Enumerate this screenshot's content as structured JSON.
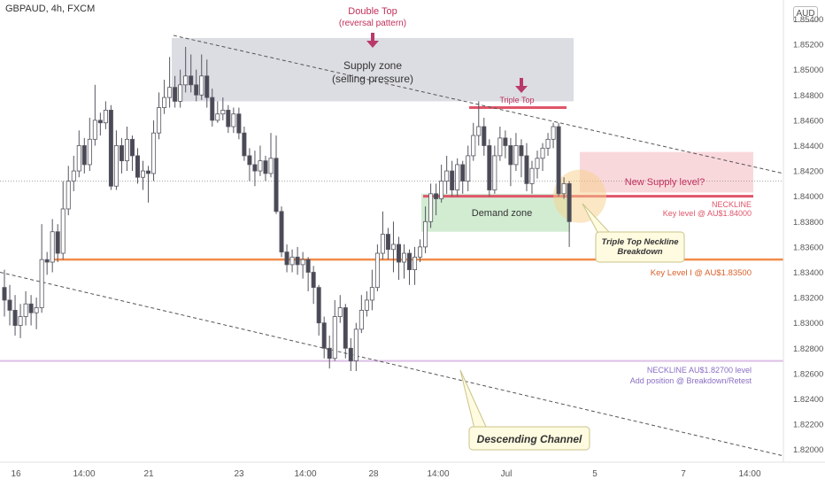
{
  "header": {
    "title": "GBPAUD, 4h, FXCM",
    "currency_button": "AUD"
  },
  "colors": {
    "bull": "#ffffff",
    "bear": "#4a4a57",
    "wick": "#555560",
    "supply_zone": "#d6d7dd",
    "demand_zone": "#cdeacd",
    "new_supply": "#f8d1d6",
    "neckline_red": "#e0556a",
    "key_level": "#f28c4a",
    "lower_neckline": "#dcbfe6",
    "magenta_text": "#c0305a",
    "purple_text": "#8a6fc4",
    "orange_text": "#d9602a",
    "arrow": "#b83a6b",
    "highlight_circle": "#f7cf8a",
    "callout_fill": "#fffbe0",
    "callout_border": "#c9c38a"
  },
  "annotations": {
    "double_top": "Double Top",
    "double_top_sub": "(reversal pattern)",
    "supply_zone": "Supply zone",
    "supply_zone_sub": "(selling pressure)",
    "triple_top": "Triple Top",
    "demand_zone": "Demand zone",
    "new_supply": "New Supply level?",
    "neckline_upper": "NECKLINE",
    "neckline_upper_sub": "Key level @ AU$1.84000",
    "key_level": "Key Level I @ AU$1.83500",
    "neckline_lower": "NECKLINE AU$1.82700 level",
    "neckline_lower_sub": "Add position @ Breakdown/Retest",
    "breakdown_callout": "Triple Top Neckline",
    "breakdown_callout_sub": "Breakdown",
    "channel_callout": "Descending Channel"
  },
  "chart_data": {
    "type": "candlestick",
    "symbol": "GBPAUD",
    "timeframe": "4h",
    "ylim": [
      1.819,
      1.8555
    ],
    "y_ticks": [
      "1.85400",
      "1.85200",
      "1.85000",
      "1.84800",
      "1.84600",
      "1.84400",
      "1.84200",
      "1.84000",
      "1.83800",
      "1.83600",
      "1.83400",
      "1.83200",
      "1.83000",
      "1.82800",
      "1.82600",
      "1.82400",
      "1.82200",
      "1.82000"
    ],
    "x_ticks": [
      "16",
      "14:00",
      "21",
      "23",
      "14:00",
      "28",
      "14:00",
      "Jul",
      "5",
      "7",
      "14:00"
    ],
    "levels": {
      "neckline_upper": 1.84,
      "key_level": 1.835,
      "neckline_lower": 1.827
    },
    "zones": {
      "supply": [
        1.8475,
        1.8525
      ],
      "demand": [
        1.8372,
        1.8402
      ],
      "new_supply": [
        1.8403,
        1.8432
      ]
    },
    "candles": [
      [
        1.8328,
        1.8318,
        1.8342,
        1.8305
      ],
      [
        1.8318,
        1.831,
        1.833,
        1.8298
      ],
      [
        1.831,
        1.8298,
        1.8322,
        1.829
      ],
      [
        1.8298,
        1.8305,
        1.8315,
        1.8288
      ],
      [
        1.8305,
        1.8315,
        1.8325,
        1.8298
      ],
      [
        1.8315,
        1.8308,
        1.8322,
        1.8298
      ],
      [
        1.8308,
        1.8312,
        1.832,
        1.8295
      ],
      [
        1.8312,
        1.835,
        1.8378,
        1.8308
      ],
      [
        1.835,
        1.8348,
        1.8356,
        1.8338
      ],
      [
        1.8348,
        1.8372,
        1.8382,
        1.834
      ],
      [
        1.8372,
        1.8355,
        1.8378,
        1.8348
      ],
      [
        1.8355,
        1.839,
        1.8412,
        1.835
      ],
      [
        1.839,
        1.8412,
        1.8424,
        1.8385
      ],
      [
        1.8412,
        1.842,
        1.8432,
        1.8404
      ],
      [
        1.842,
        1.844,
        1.8452,
        1.8415
      ],
      [
        1.844,
        1.8425,
        1.8446,
        1.8418
      ],
      [
        1.8425,
        1.8445,
        1.8462,
        1.842
      ],
      [
        1.8445,
        1.846,
        1.8488,
        1.844
      ],
      [
        1.846,
        1.8458,
        1.8466,
        1.8448
      ],
      [
        1.8458,
        1.8468,
        1.8475,
        1.8453
      ],
      [
        1.8468,
        1.8408,
        1.8472,
        1.8405
      ],
      [
        1.8408,
        1.844,
        1.8452,
        1.8405
      ],
      [
        1.844,
        1.8428,
        1.8446,
        1.8418
      ],
      [
        1.8428,
        1.8445,
        1.8455,
        1.842
      ],
      [
        1.8445,
        1.8432,
        1.8448,
        1.842
      ],
      [
        1.8432,
        1.8415,
        1.8438,
        1.841
      ],
      [
        1.8415,
        1.842,
        1.8428,
        1.8405
      ],
      [
        1.842,
        1.8418,
        1.8424,
        1.8395
      ],
      [
        1.8418,
        1.845,
        1.846,
        1.8412
      ],
      [
        1.845,
        1.847,
        1.8482,
        1.8445
      ],
      [
        1.847,
        1.8478,
        1.8492,
        1.8465
      ],
      [
        1.8478,
        1.8486,
        1.851,
        1.847
      ],
      [
        1.8486,
        1.8475,
        1.8495,
        1.847
      ],
      [
        1.8475,
        1.8488,
        1.85,
        1.847
      ],
      [
        1.8488,
        1.8495,
        1.8518,
        1.8482
      ],
      [
        1.8495,
        1.8488,
        1.8512,
        1.8482
      ],
      [
        1.8488,
        1.848,
        1.85,
        1.8475
      ],
      [
        1.848,
        1.8495,
        1.8512,
        1.8476
      ],
      [
        1.8495,
        1.8478,
        1.8508,
        1.847
      ],
      [
        1.8478,
        1.846,
        1.8485,
        1.8455
      ],
      [
        1.846,
        1.8465,
        1.8475,
        1.8458
      ],
      [
        1.8465,
        1.8468,
        1.8478,
        1.846
      ],
      [
        1.8468,
        1.8455,
        1.8472,
        1.845
      ],
      [
        1.8455,
        1.8465,
        1.847,
        1.845
      ],
      [
        1.8465,
        1.845,
        1.847,
        1.8445
      ],
      [
        1.845,
        1.8432,
        1.8455,
        1.8428
      ],
      [
        1.8432,
        1.8425,
        1.8438,
        1.8412
      ],
      [
        1.8425,
        1.842,
        1.8436,
        1.8408
      ],
      [
        1.842,
        1.8428,
        1.844,
        1.8416
      ],
      [
        1.8428,
        1.8418,
        1.8432,
        1.8412
      ],
      [
        1.8418,
        1.843,
        1.845,
        1.8415
      ],
      [
        1.843,
        1.8388,
        1.8448,
        1.8386
      ],
      [
        1.8388,
        1.8356,
        1.8392,
        1.8352
      ],
      [
        1.8356,
        1.8346,
        1.8362,
        1.834
      ],
      [
        1.8346,
        1.8352,
        1.8358,
        1.834
      ],
      [
        1.8352,
        1.8346,
        1.836,
        1.8338
      ],
      [
        1.8346,
        1.835,
        1.8356,
        1.8335
      ],
      [
        1.835,
        1.834,
        1.8352,
        1.8325
      ],
      [
        1.834,
        1.8328,
        1.8345,
        1.8315
      ],
      [
        1.8328,
        1.83,
        1.833,
        1.829
      ],
      [
        1.83,
        1.828,
        1.8305,
        1.8272
      ],
      [
        1.828,
        1.8272,
        1.829,
        1.8264
      ],
      [
        1.8272,
        1.8305,
        1.8318,
        1.827
      ],
      [
        1.8305,
        1.8312,
        1.8322,
        1.83
      ],
      [
        1.8312,
        1.828,
        1.8315,
        1.8272
      ],
      [
        1.828,
        1.827,
        1.8288,
        1.8262
      ],
      [
        1.827,
        1.8295,
        1.83,
        1.8262
      ],
      [
        1.8295,
        1.831,
        1.8322,
        1.8292
      ],
      [
        1.831,
        1.8318,
        1.8325,
        1.8305
      ],
      [
        1.8318,
        1.8328,
        1.8342,
        1.831
      ],
      [
        1.8328,
        1.8355,
        1.8362,
        1.8325
      ],
      [
        1.8355,
        1.837,
        1.8388,
        1.835
      ],
      [
        1.837,
        1.8358,
        1.8375,
        1.835
      ],
      [
        1.8358,
        1.8362,
        1.838,
        1.834
      ],
      [
        1.8362,
        1.8348,
        1.8368,
        1.8334
      ],
      [
        1.8348,
        1.8355,
        1.8362,
        1.8335
      ],
      [
        1.8355,
        1.8342,
        1.8358,
        1.833
      ],
      [
        1.8342,
        1.8352,
        1.836,
        1.833
      ],
      [
        1.8352,
        1.836,
        1.8366,
        1.8348
      ],
      [
        1.836,
        1.838,
        1.8392,
        1.8355
      ],
      [
        1.838,
        1.8402,
        1.841,
        1.8375
      ],
      [
        1.8402,
        1.8398,
        1.841,
        1.8385
      ],
      [
        1.8398,
        1.8412,
        1.8425,
        1.8395
      ],
      [
        1.8412,
        1.842,
        1.8432,
        1.8402
      ],
      [
        1.842,
        1.8405,
        1.8428,
        1.84
      ],
      [
        1.8405,
        1.8425,
        1.843,
        1.84
      ],
      [
        1.8425,
        1.8412,
        1.8428,
        1.8402
      ],
      [
        1.8412,
        1.8432,
        1.844,
        1.8404
      ],
      [
        1.8432,
        1.8448,
        1.8458,
        1.8428
      ],
      [
        1.8448,
        1.8455,
        1.8475,
        1.844
      ],
      [
        1.8455,
        1.844,
        1.8462,
        1.8432
      ],
      [
        1.844,
        1.8405,
        1.8445,
        1.84
      ],
      [
        1.8405,
        1.8432,
        1.844,
        1.8402
      ],
      [
        1.8432,
        1.8446,
        1.8455,
        1.8428
      ],
      [
        1.8446,
        1.844,
        1.8452,
        1.843
      ],
      [
        1.844,
        1.8425,
        1.8446,
        1.8408
      ],
      [
        1.8425,
        1.844,
        1.845,
        1.842
      ],
      [
        1.844,
        1.8432,
        1.8445,
        1.8415
      ],
      [
        1.8432,
        1.841,
        1.8442,
        1.8404
      ],
      [
        1.841,
        1.8422,
        1.8428,
        1.8402
      ],
      [
        1.8422,
        1.843,
        1.8436,
        1.8414
      ],
      [
        1.843,
        1.8438,
        1.8442,
        1.842
      ],
      [
        1.8438,
        1.8445,
        1.845,
        1.8432
      ],
      [
        1.8445,
        1.8455,
        1.8458,
        1.8438
      ],
      [
        1.8455,
        1.8402,
        1.8458,
        1.84
      ],
      [
        1.8402,
        1.841,
        1.8415,
        1.8398
      ],
      [
        1.841,
        1.838,
        1.8412,
        1.836
      ]
    ]
  }
}
